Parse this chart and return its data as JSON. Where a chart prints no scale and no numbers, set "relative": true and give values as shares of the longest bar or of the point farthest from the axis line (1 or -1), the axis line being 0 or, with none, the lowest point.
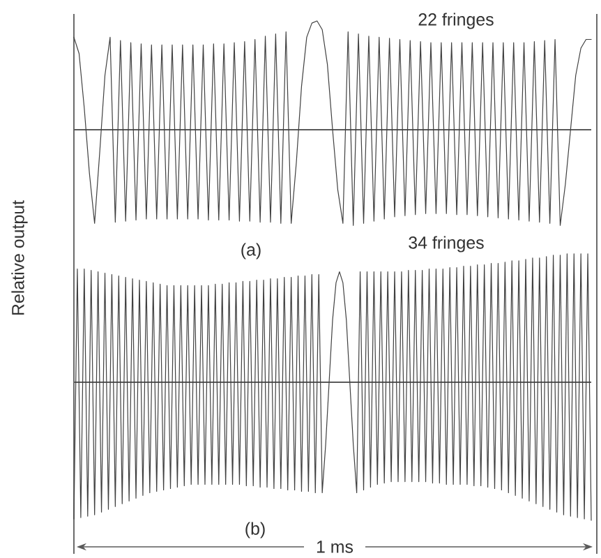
{
  "chart_data": [
    {
      "type": "line",
      "relative": true,
      "color": "#404040",
      "ylabel": "Relative output",
      "annotations": [
        "22 fringes",
        "(a)"
      ],
      "categories": [
        null,
        null,
        null,
        null,
        null,
        null,
        null,
        null,
        null,
        null,
        null,
        null,
        null,
        null,
        null,
        null,
        null,
        null,
        null,
        null,
        null,
        null,
        null,
        null,
        null,
        null,
        null,
        null,
        null,
        null,
        null,
        null,
        null,
        null,
        null,
        null,
        null,
        null,
        null,
        null,
        null,
        null,
        null,
        null,
        null,
        null,
        null,
        null,
        null,
        null,
        null,
        null,
        null,
        null,
        null,
        null,
        null,
        null,
        null,
        null,
        null,
        null,
        null,
        null,
        null,
        null,
        null,
        null,
        null,
        null,
        null,
        null,
        null,
        null,
        null,
        null,
        null,
        null,
        null,
        null,
        null,
        null,
        null,
        null,
        null,
        null,
        null,
        null,
        null,
        null,
        null,
        null,
        null,
        null,
        null,
        null,
        null,
        null,
        null,
        null,
        null
      ],
      "values": [
        0.85,
        0.7,
        0.2,
        -0.4,
        -0.86,
        -0.2,
        0.5,
        0.85,
        -0.85,
        0.82,
        -0.84,
        0.8,
        -0.83,
        0.79,
        -0.82,
        0.78,
        -0.82,
        0.78,
        -0.82,
        0.78,
        -0.82,
        0.78,
        -0.82,
        0.78,
        -0.82,
        0.78,
        -0.83,
        0.79,
        -0.83,
        0.79,
        -0.83,
        0.8,
        -0.84,
        0.81,
        -0.84,
        0.83,
        -0.85,
        0.86,
        -0.85,
        0.88,
        -0.86,
        0.9,
        -0.86,
        -0.3,
        0.4,
        0.85,
        0.98,
        1.0,
        0.92,
        0.6,
        0.0,
        -0.55,
        -0.86,
        0.9,
        -0.88,
        0.88,
        -0.86,
        0.86,
        -0.84,
        0.85,
        -0.82,
        0.84,
        -0.8,
        0.83,
        -0.79,
        0.82,
        -0.78,
        0.81,
        -0.77,
        0.8,
        -0.77,
        0.8,
        -0.77,
        0.8,
        -0.78,
        0.8,
        -0.78,
        0.8,
        -0.79,
        0.8,
        -0.8,
        0.8,
        -0.81,
        0.8,
        -0.82,
        0.8,
        -0.83,
        0.8,
        -0.84,
        0.81,
        -0.85,
        0.82,
        -0.86,
        0.83,
        -0.88,
        -0.5,
        0.0,
        0.5,
        0.75,
        0.83,
        0.83
      ]
    },
    {
      "type": "line",
      "relative": true,
      "color": "#404040",
      "annotations": [
        "34 fringes",
        "(b)",
        "1 ms"
      ],
      "categories": [
        null,
        null,
        null,
        null,
        null,
        null,
        null,
        null,
        null,
        null,
        null,
        null,
        null,
        null,
        null,
        null,
        null,
        null,
        null,
        null,
        null,
        null,
        null,
        null,
        null,
        null,
        null,
        null,
        null,
        null,
        null,
        null,
        null,
        null,
        null,
        null,
        null,
        null,
        null,
        null,
        null,
        null,
        null,
        null,
        null,
        null,
        null,
        null,
        null,
        null,
        null,
        null,
        null,
        null,
        null,
        null,
        null,
        null,
        null,
        null,
        null,
        null,
        null,
        null,
        null,
        null,
        null,
        null,
        null,
        null,
        null,
        null,
        null,
        null,
        null,
        null,
        null,
        null,
        null,
        null,
        null,
        null,
        null,
        null,
        null,
        null,
        null,
        null,
        null,
        null,
        null,
        null,
        null,
        null,
        null,
        null,
        null,
        null,
        null,
        null,
        null,
        null,
        null,
        null,
        null,
        null,
        null,
        null,
        null,
        null,
        null,
        null,
        null,
        null,
        null,
        null,
        null,
        null,
        null,
        null,
        null,
        null,
        null,
        null,
        null,
        null,
        null,
        null,
        null,
        null,
        null,
        null,
        null,
        null,
        null,
        null,
        null,
        null,
        null,
        null,
        null,
        null,
        null,
        null,
        null,
        null,
        null,
        null,
        null,
        null,
        null
      ],
      "values": [
        -0.99,
        0.82,
        -0.98,
        0.82,
        -0.97,
        0.81,
        -0.96,
        0.8,
        -0.94,
        0.79,
        -0.92,
        0.78,
        -0.9,
        0.77,
        -0.88,
        0.76,
        -0.86,
        0.75,
        -0.84,
        0.74,
        -0.82,
        0.73,
        -0.8,
        0.72,
        -0.79,
        0.71,
        -0.78,
        0.7,
        -0.77,
        0.7,
        -0.76,
        0.7,
        -0.75,
        0.7,
        -0.74,
        0.7,
        -0.74,
        0.7,
        -0.74,
        0.7,
        -0.74,
        0.71,
        -0.74,
        0.71,
        -0.74,
        0.72,
        -0.74,
        0.72,
        -0.74,
        0.73,
        -0.75,
        0.73,
        -0.75,
        0.74,
        -0.76,
        0.74,
        -0.76,
        0.75,
        -0.77,
        0.75,
        -0.77,
        0.76,
        -0.78,
        0.76,
        -0.78,
        0.77,
        -0.79,
        0.77,
        -0.79,
        0.78,
        -0.8,
        0.78,
        -0.8,
        -0.45,
        0.0,
        0.45,
        0.72,
        0.8,
        0.72,
        0.45,
        0.0,
        -0.45,
        -0.8,
        0.8,
        -0.78,
        0.8,
        -0.76,
        0.8,
        -0.74,
        0.8,
        -0.73,
        0.8,
        -0.72,
        0.8,
        -0.72,
        0.8,
        -0.72,
        0.81,
        -0.72,
        0.81,
        -0.72,
        0.81,
        -0.72,
        0.82,
        -0.73,
        0.82,
        -0.73,
        0.82,
        -0.74,
        0.83,
        -0.74,
        0.83,
        -0.74,
        0.84,
        -0.74,
        0.84,
        -0.75,
        0.85,
        -0.75,
        0.85,
        -0.76,
        0.86,
        -0.77,
        0.86,
        -0.78,
        0.87,
        -0.8,
        0.88,
        -0.82,
        0.88,
        -0.84,
        0.89,
        -0.86,
        0.9,
        -0.88,
        0.9,
        -0.9,
        0.91,
        -0.92,
        0.92,
        -0.94,
        0.92,
        -0.96,
        0.93,
        -0.97,
        0.93,
        -0.98,
        0.93,
        -0.99,
        0.93,
        -1.0
      ]
    }
  ]
}
